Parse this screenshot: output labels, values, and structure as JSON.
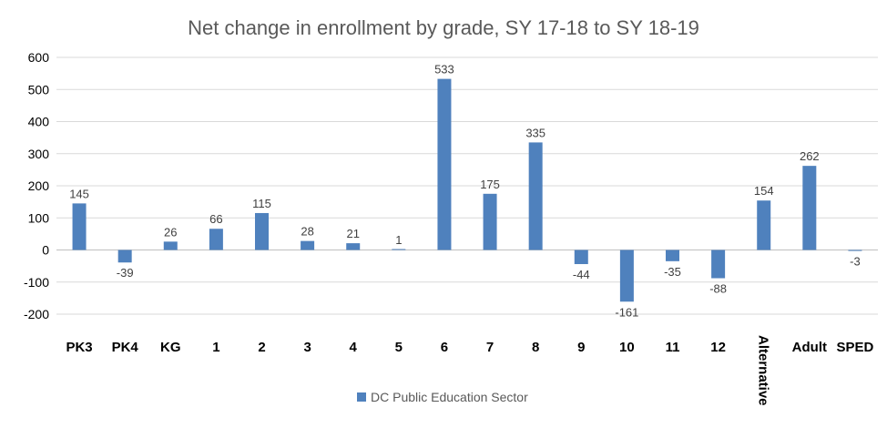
{
  "chart_data": {
    "type": "bar",
    "title": "Net change in enrollment by grade, SY 17-18 to SY 18-19",
    "xlabel": "",
    "ylabel": "",
    "categories": [
      "PK3",
      "PK4",
      "KG",
      "1",
      "2",
      "3",
      "4",
      "5",
      "6",
      "7",
      "8",
      "9",
      "10",
      "11",
      "12",
      "Alternative",
      "Adult",
      "SPED"
    ],
    "series": [
      {
        "name": "DC Public Education Sector",
        "color": "#4F81BD",
        "values": [
          145,
          -39,
          26,
          66,
          115,
          28,
          21,
          1,
          533,
          175,
          335,
          -44,
          -161,
          -35,
          -88,
          154,
          262,
          -3
        ]
      }
    ],
    "ylim": [
      -200,
      600
    ],
    "yticks": [
      -200,
      -100,
      0,
      100,
      200,
      300,
      400,
      500,
      600
    ],
    "grid": true,
    "legend": "bottom"
  }
}
